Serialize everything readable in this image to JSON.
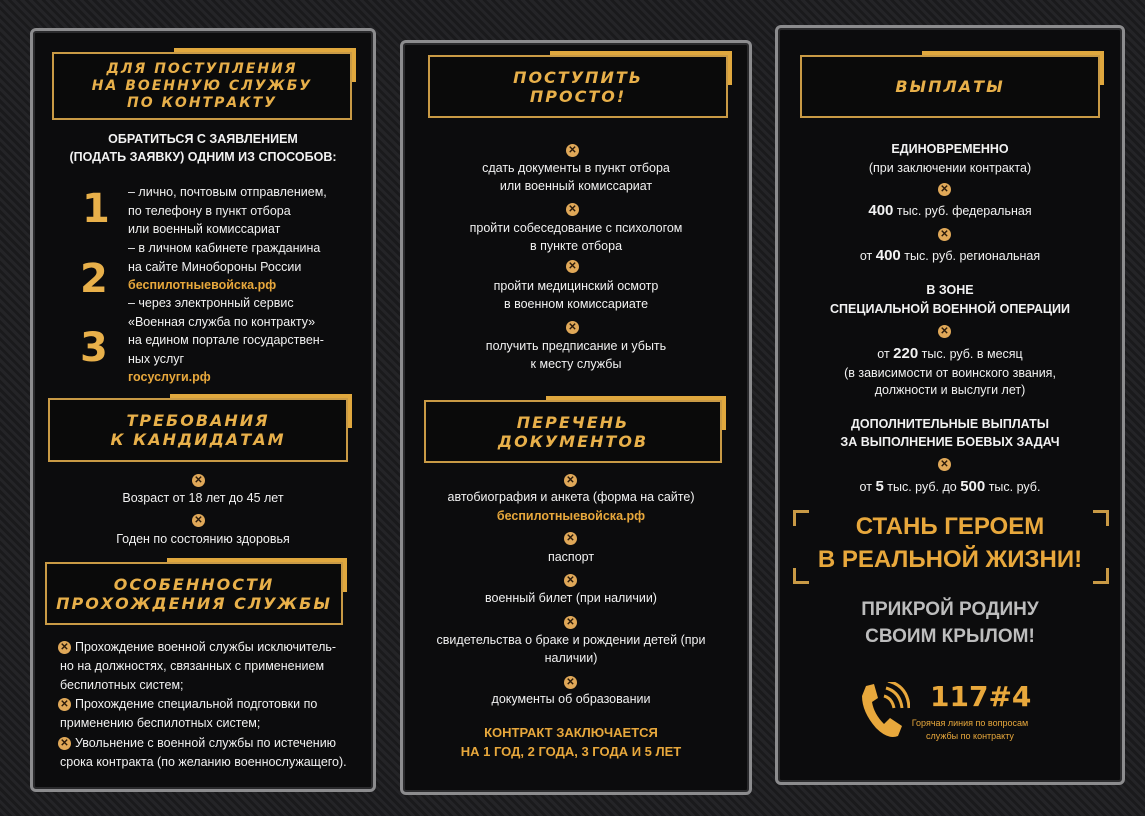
{
  "left": {
    "header": [
      "ДЛЯ ПОСТУПЛЕНИЯ",
      "НА ВОЕННУЮ СЛУЖБУ",
      "ПО КОНТРАКТУ"
    ],
    "intro": [
      "ОБРАТИТЬСЯ С ЗАЯВЛЕНИЕМ",
      "(ПОДАТЬ ЗАЯВКУ) ОДНИМ ИЗ СПОСОБОВ:"
    ],
    "methods": [
      {
        "num": "1",
        "lines": [
          "– лично, почтовым отправлением,",
          "по телефону в пункт отбора",
          "или военный комиссариат"
        ],
        "link": ""
      },
      {
        "num": "2",
        "lines": [
          "– в личном кабинете гражданина",
          "на сайте Минобороны России"
        ],
        "link": "беспилотныевойска.рф"
      },
      {
        "num": "3",
        "lines": [
          "– через электронный сервис",
          "«Военная служба по контракту»",
          "на едином портале государствен-",
          "ных услуг"
        ],
        "link": "госуслуги.рф"
      }
    ],
    "req_header": [
      "ТРЕБОВАНИЯ",
      "К КАНДИДАТАМ"
    ],
    "requirements": [
      "Возраст  от 18 лет до 45 лет",
      "Годен по состоянию здоровья"
    ],
    "feat_header": [
      "ОСОБЕННОСТИ",
      "ПРОХОЖДЕНИЯ СЛУЖБЫ"
    ],
    "features": [
      [
        "Прохождение военной службы исключитель-",
        "но на должностях, связанных с применением",
        "беспилотных систем;"
      ],
      [
        "Прохождение специальной подготовки по",
        "применению беспилотных систем;"
      ],
      [
        "Увольнение с военной службы по истечению",
        "срока контракта (по желанию военнослужащего)."
      ]
    ]
  },
  "middle": {
    "header": [
      "ПОСТУПИТЬ",
      "ПРОСТО!"
    ],
    "steps": [
      [
        "сдать документы в пункт отбора",
        "или военный комиссариат"
      ],
      [
        "пройти собеседование с психологом",
        "в пункте отбора"
      ],
      [
        "пройти медицинский осмотр",
        "в военном комиссариате"
      ],
      [
        "получить предписание и убыть",
        "к месту службы"
      ]
    ],
    "docs_header": [
      "ПЕРЕЧЕНЬ",
      "ДОКУМЕНТОВ"
    ],
    "docs": [
      {
        "lines": [
          "автобиография и анкета (форма на сайте)"
        ],
        "link": "беспилотныевойска.рф"
      },
      {
        "lines": [
          "паспорт"
        ],
        "link": ""
      },
      {
        "lines": [
          "военный билет (при наличии)"
        ],
        "link": ""
      },
      {
        "lines": [
          "свидетельства о браке и рождении детей (при",
          "наличии)"
        ],
        "link": ""
      },
      {
        "lines": [
          "документы об образовании"
        ],
        "link": ""
      }
    ],
    "contract": [
      "КОНТРАКТ ЗАКЛЮЧАЕТСЯ",
      "НА 1 ГОД, 2 ГОДА, 3 ГОДА И 5 ЛЕТ"
    ]
  },
  "right": {
    "header": [
      "ВЫПЛАТЫ"
    ],
    "once": [
      "ЕДИНОВРЕМЕННО",
      "(при заключении контракта)"
    ],
    "federal": {
      "amount": "400",
      "text": " тыс. руб. федеральная"
    },
    "regional": {
      "prefix": "от ",
      "amount": "400",
      "text": " тыс. руб. региональная"
    },
    "zone": [
      "В ЗОНЕ",
      "СПЕЦИАЛЬНОЙ ВОЕННОЙ ОПЕРАЦИИ"
    ],
    "monthly": {
      "prefix": "от ",
      "amount": "220",
      "text": " тыс. руб. в месяц"
    },
    "monthly_note": [
      "(в зависимости от  воинского звания,",
      "должности и выслуги лет)"
    ],
    "extra": [
      "ДОПОЛНИТЕЛЬНЫЕ ВЫПЛАТЫ",
      "ЗА ВЫПОЛНЕНИЕ БОЕВЫХ ЗАДАЧ"
    ],
    "extra_range": {
      "prefix": "от ",
      "a": "5",
      "mid": " тыс. руб. до ",
      "b": "500",
      "text": " тыс. руб."
    },
    "slogan": [
      "СТАНЬ ГЕРОЕМ",
      "В РЕАЛЬНОЙ ЖИЗНИ!"
    ],
    "slogan2": [
      "ПРИКРОЙ РОДИНУ",
      "СВОИМ КРЫЛОМ!"
    ],
    "hotline": {
      "number": "117#4",
      "caption": [
        "Горячая линия по вопросам",
        "службы по контракту"
      ]
    }
  },
  "colors": {
    "gold": "#e8b04a",
    "frame": "#8c8c8e",
    "background": "#1e1e20"
  }
}
